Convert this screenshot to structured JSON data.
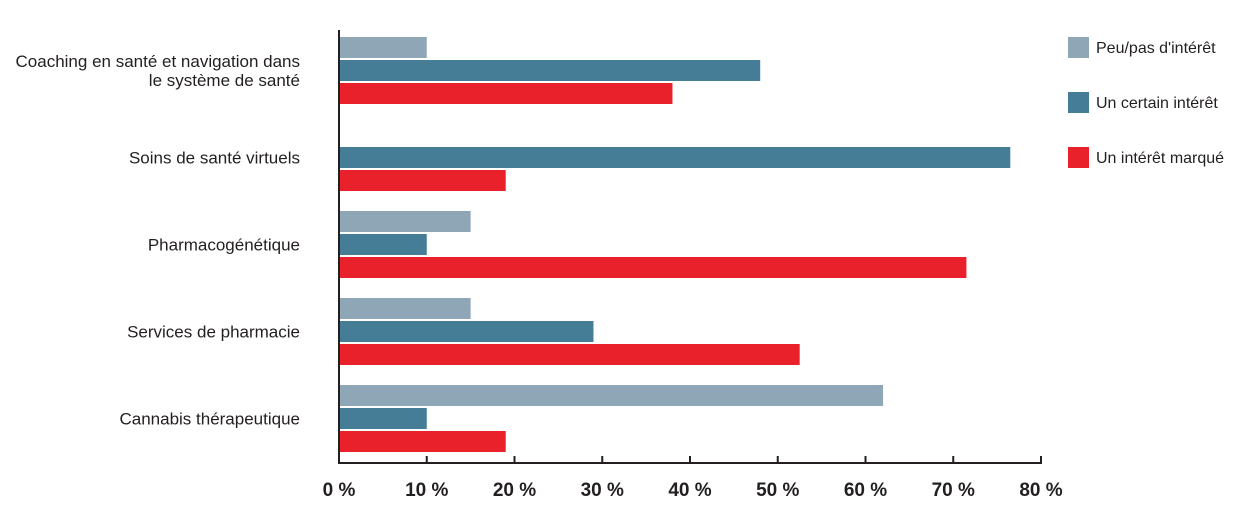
{
  "chart_data": {
    "type": "bar",
    "orientation": "horizontal",
    "categories": [
      [
        "Coaching en santé et navigation dans",
        "le système de santé"
      ],
      [
        "Soins de santé virtuels"
      ],
      [
        "Pharmacogénétique"
      ],
      [
        "Services de pharmacie"
      ],
      [
        "Cannabis thérapeutique"
      ]
    ],
    "series": [
      {
        "name": "Peu/pas d'intérêt",
        "color": "#8fa6b7",
        "values": [
          10,
          0,
          15,
          15,
          62
        ]
      },
      {
        "name": "Un certain intérêt",
        "color": "#457c96",
        "values": [
          48,
          76.5,
          10,
          29,
          10
        ]
      },
      {
        "name": "Un intérêt marqué",
        "color": "#e8212a",
        "values": [
          38,
          19,
          71.5,
          52.5,
          19
        ]
      }
    ],
    "x_ticks": [
      "0 %",
      "10 %",
      "20 %",
      "30 %",
      "40 %",
      "50 %",
      "60 %",
      "70 %",
      "80 %"
    ],
    "xlim": [
      0,
      80
    ],
    "grid": false,
    "legend": "top-right"
  }
}
